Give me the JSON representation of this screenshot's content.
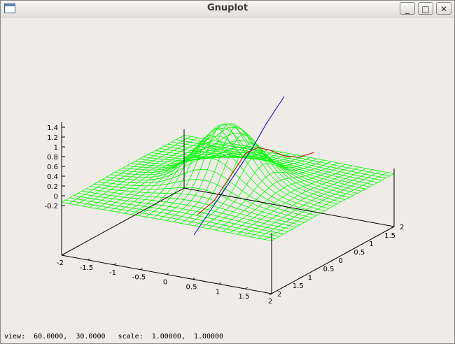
{
  "window": {
    "title": "Gnuplot",
    "minimize_label": "_",
    "maximize_label": "□",
    "close_label": "✕"
  },
  "plot": {
    "type": "surface",
    "z_ticks": [
      "1.4",
      "1.2",
      "1",
      "0.8",
      "0.6",
      "0.4",
      "0.2",
      "0",
      "-0.2"
    ],
    "x_ticks": [
      "-2",
      "-1.5",
      "-1",
      "-0.5",
      "0",
      "0.5",
      "1",
      "1.5",
      "2"
    ],
    "y_ticks": [
      "2",
      "1.5",
      "1",
      "0.5",
      "0",
      "0.5",
      "1",
      "1.5",
      "2"
    ],
    "surface_color": "#00ff00",
    "line1_color": "#0000cc",
    "line2_color": "#cc0000"
  },
  "chart_data": {
    "type": "surface",
    "x": [
      "-2",
      "-1.5",
      "-1",
      "-0.5",
      "0",
      "0.5",
      "1",
      "1.5",
      "2"
    ],
    "y": [
      "2",
      "1.5",
      "1",
      "0.5",
      "0",
      "0.5",
      "1",
      "1.5",
      "2"
    ],
    "zlim": [
      -0.2,
      1.4
    ],
    "view": [
      60,
      30
    ],
    "scale": [
      1,
      1
    ]
  },
  "status": {
    "text": "view:  60.0000,  30.0000   scale:  1.00000,  1.00000"
  }
}
